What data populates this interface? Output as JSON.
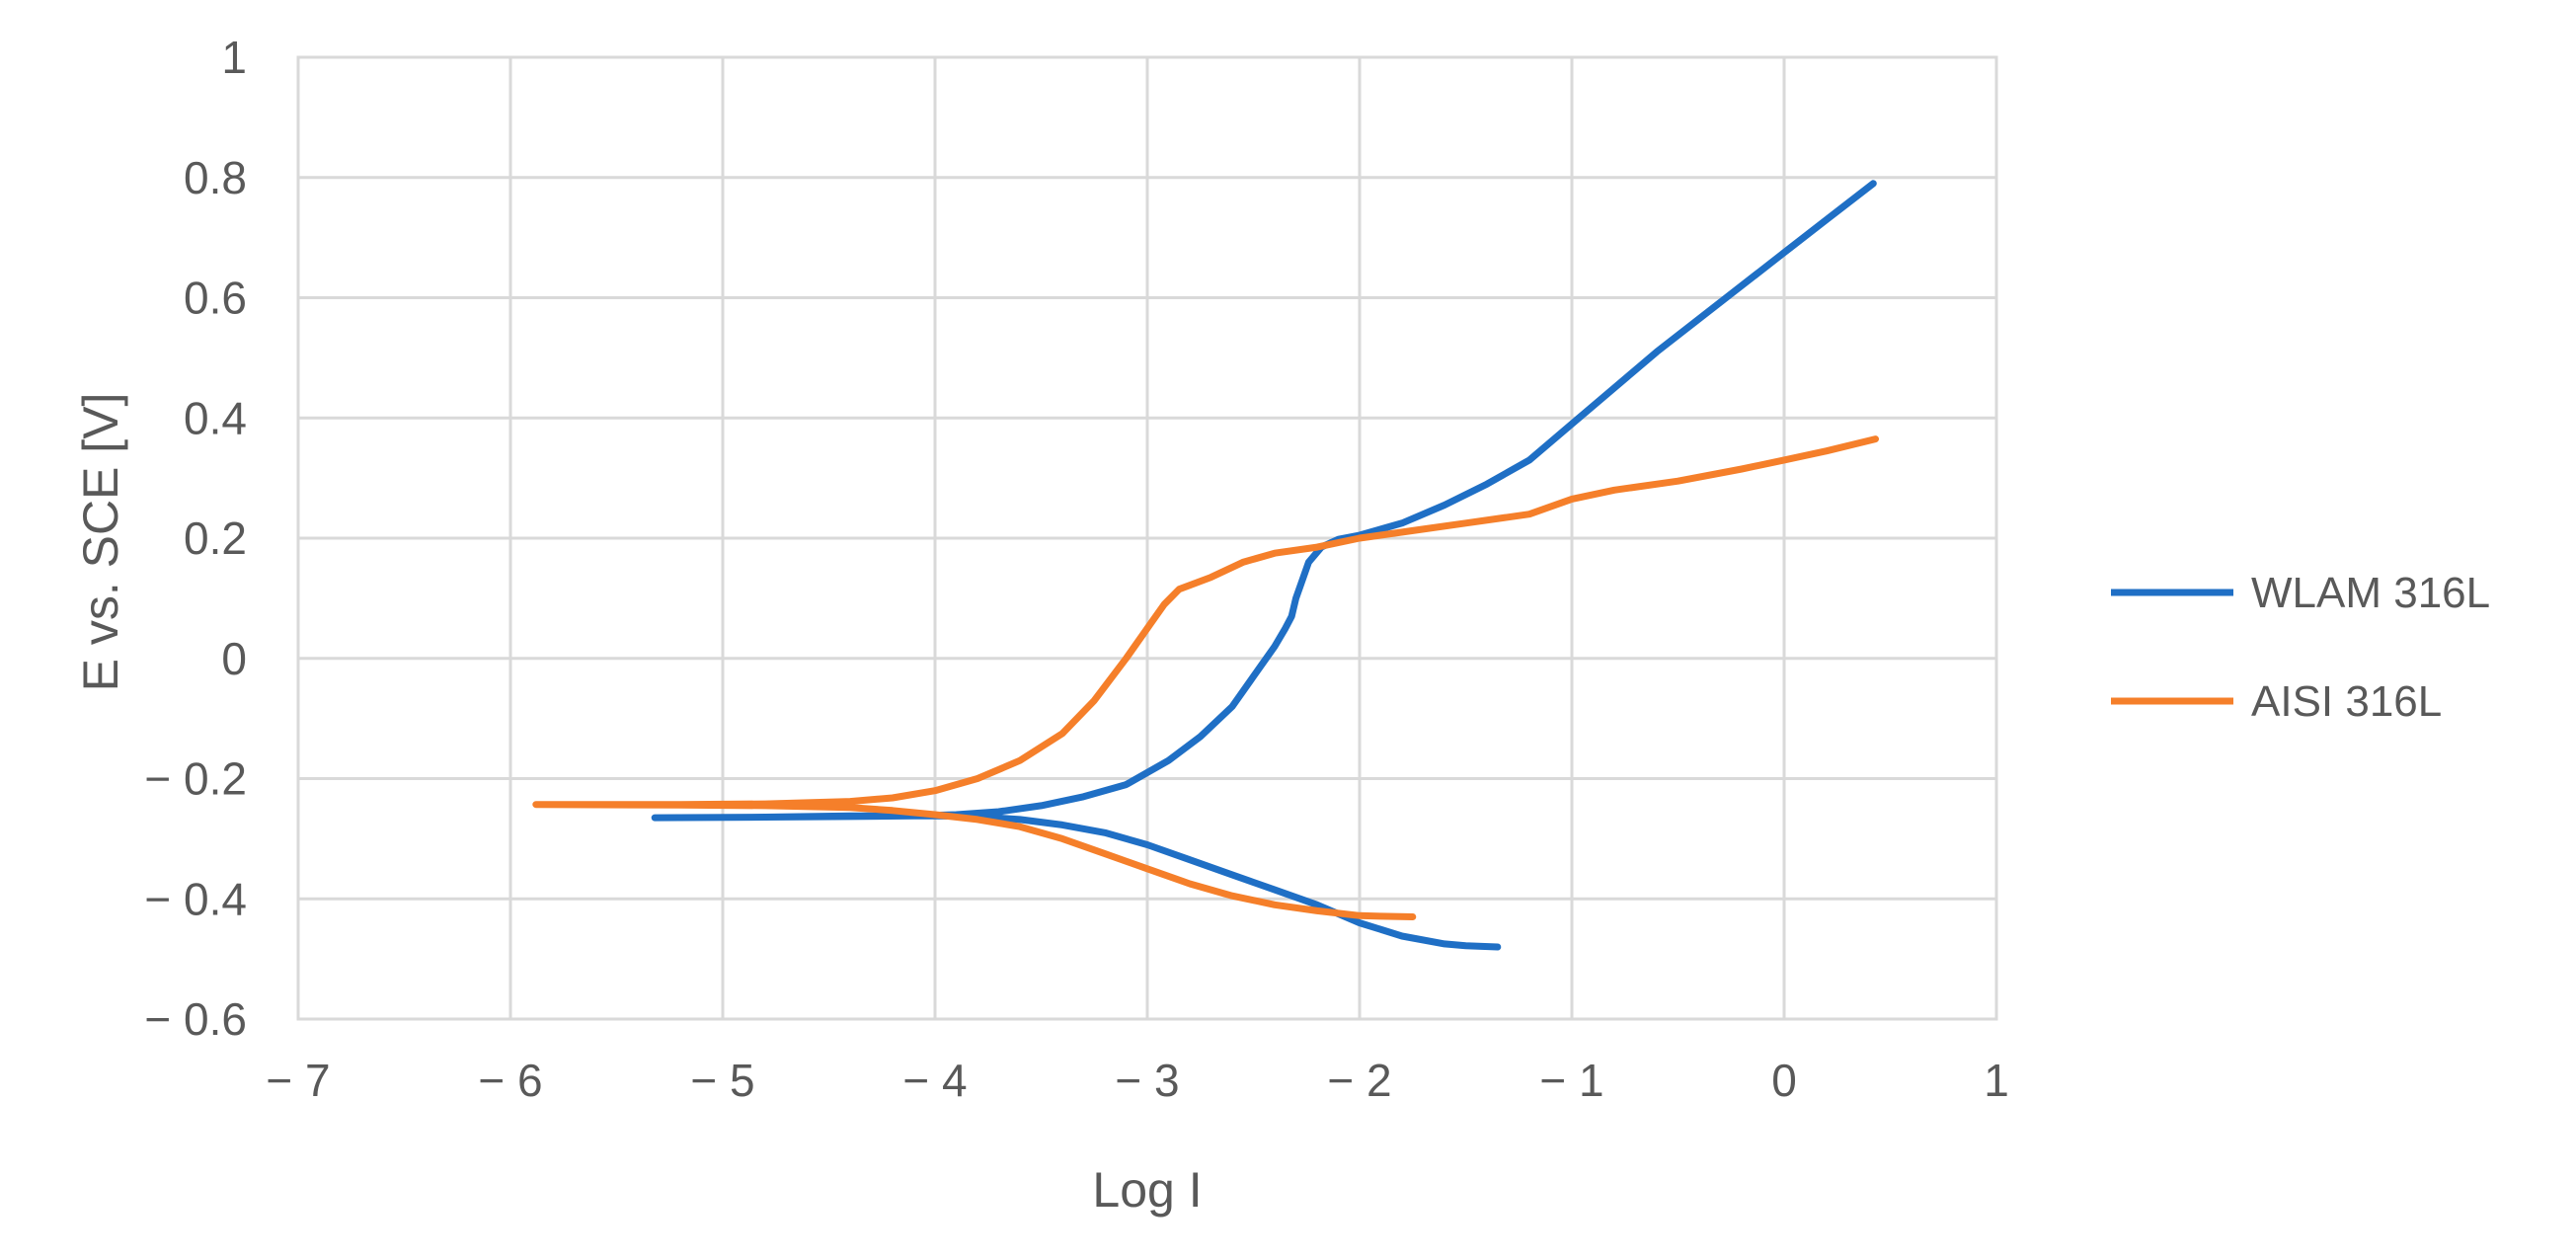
{
  "chart_data": {
    "type": "line",
    "title": "",
    "xlabel": "Log I",
    "ylabel": "E vs. SCE [V]",
    "xlim": [
      -7,
      1
    ],
    "ylim": [
      -0.6,
      1
    ],
    "x_ticks": [
      -7,
      -6,
      -5,
      -4,
      -3,
      -2,
      -1,
      0,
      1
    ],
    "y_ticks": [
      -0.6,
      -0.4,
      -0.2,
      0,
      0.2,
      0.4,
      0.6,
      0.8,
      1
    ],
    "x_tick_labels": [
      "− 7",
      "− 6",
      "− 5",
      "− 4",
      "− 3",
      "− 2",
      "− 1",
      "0",
      "1"
    ],
    "y_tick_labels": [
      "− 0.6",
      "− 0.4",
      "− 0.2",
      "0",
      "0.2",
      "0.4",
      "0.6",
      "0.8",
      "1"
    ],
    "grid": true,
    "legend_position": "right",
    "series": [
      {
        "name": "WLAM 316L",
        "color": "#1f6fc5",
        "points": [
          [
            -1.35,
            -0.48
          ],
          [
            -1.5,
            -0.478
          ],
          [
            -1.6,
            -0.475
          ],
          [
            -1.8,
            -0.462
          ],
          [
            -2.0,
            -0.44
          ],
          [
            -2.2,
            -0.41
          ],
          [
            -2.4,
            -0.385
          ],
          [
            -2.6,
            -0.36
          ],
          [
            -2.8,
            -0.335
          ],
          [
            -3.0,
            -0.31
          ],
          [
            -3.2,
            -0.29
          ],
          [
            -3.4,
            -0.277
          ],
          [
            -3.6,
            -0.268
          ],
          [
            -3.8,
            -0.263
          ],
          [
            -4.0,
            -0.262
          ],
          [
            -4.4,
            -0.262
          ],
          [
            -4.8,
            -0.264
          ],
          [
            -5.32,
            -0.265
          ],
          [
            -4.8,
            -0.264
          ],
          [
            -4.4,
            -0.263
          ],
          [
            -4.1,
            -0.262
          ],
          [
            -3.9,
            -0.26
          ],
          [
            -3.7,
            -0.255
          ],
          [
            -3.5,
            -0.245
          ],
          [
            -3.3,
            -0.23
          ],
          [
            -3.1,
            -0.21
          ],
          [
            -2.9,
            -0.17
          ],
          [
            -2.75,
            -0.13
          ],
          [
            -2.6,
            -0.08
          ],
          [
            -2.5,
            -0.03
          ],
          [
            -2.4,
            0.02
          ],
          [
            -2.35,
            0.05
          ],
          [
            -2.32,
            0.07
          ],
          [
            -2.3,
            0.1
          ],
          [
            -2.27,
            0.13
          ],
          [
            -2.24,
            0.16
          ],
          [
            -2.18,
            0.185
          ],
          [
            -2.1,
            0.198
          ],
          [
            -2.0,
            0.205
          ],
          [
            -1.8,
            0.225
          ],
          [
            -1.6,
            0.255
          ],
          [
            -1.4,
            0.29
          ],
          [
            -1.2,
            0.33
          ],
          [
            -1.0,
            0.39
          ],
          [
            -0.8,
            0.45
          ],
          [
            -0.6,
            0.51
          ],
          [
            -0.4,
            0.565
          ],
          [
            -0.2,
            0.62
          ],
          [
            0.0,
            0.675
          ],
          [
            0.2,
            0.73
          ],
          [
            0.42,
            0.79
          ]
        ]
      },
      {
        "name": "AISI 316L",
        "color": "#f57f2a",
        "points": [
          [
            -1.75,
            -0.43
          ],
          [
            -1.9,
            -0.429
          ],
          [
            -2.0,
            -0.428
          ],
          [
            -2.2,
            -0.42
          ],
          [
            -2.4,
            -0.41
          ],
          [
            -2.6,
            -0.395
          ],
          [
            -2.8,
            -0.375
          ],
          [
            -3.0,
            -0.35
          ],
          [
            -3.2,
            -0.325
          ],
          [
            -3.4,
            -0.3
          ],
          [
            -3.6,
            -0.28
          ],
          [
            -3.8,
            -0.268
          ],
          [
            -4.0,
            -0.26
          ],
          [
            -4.2,
            -0.253
          ],
          [
            -4.4,
            -0.248
          ],
          [
            -4.8,
            -0.245
          ],
          [
            -5.2,
            -0.244
          ],
          [
            -5.88,
            -0.243
          ],
          [
            -5.2,
            -0.243
          ],
          [
            -4.8,
            -0.242
          ],
          [
            -4.4,
            -0.238
          ],
          [
            -4.2,
            -0.232
          ],
          [
            -4.0,
            -0.22
          ],
          [
            -3.8,
            -0.2
          ],
          [
            -3.6,
            -0.17
          ],
          [
            -3.4,
            -0.125
          ],
          [
            -3.25,
            -0.07
          ],
          [
            -3.1,
            0.0
          ],
          [
            -3.0,
            0.05
          ],
          [
            -2.92,
            0.09
          ],
          [
            -2.85,
            0.115
          ],
          [
            -2.7,
            0.135
          ],
          [
            -2.55,
            0.16
          ],
          [
            -2.4,
            0.175
          ],
          [
            -2.2,
            0.185
          ],
          [
            -2.0,
            0.2
          ],
          [
            -1.7,
            0.215
          ],
          [
            -1.5,
            0.225
          ],
          [
            -1.2,
            0.24
          ],
          [
            -1.0,
            0.265
          ],
          [
            -0.8,
            0.28
          ],
          [
            -0.5,
            0.295
          ],
          [
            -0.2,
            0.315
          ],
          [
            0.0,
            0.33
          ],
          [
            0.2,
            0.345
          ],
          [
            0.43,
            0.365
          ]
        ]
      }
    ]
  }
}
